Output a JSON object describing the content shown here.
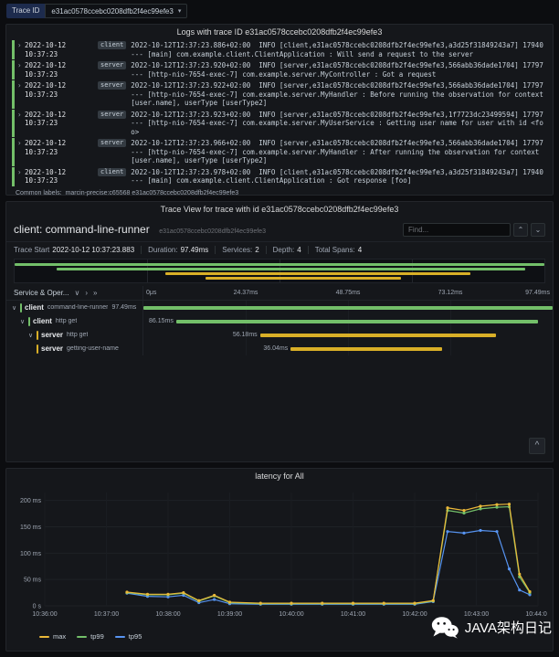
{
  "toolbar": {
    "trace_id_label": "Trace ID",
    "trace_id_value": "e31ac0578ccebc0208dfb2f4ec99efe3"
  },
  "glyphs": {
    "dropdown_caret": "▾",
    "log_expand": "›",
    "collapse_chevron": "∨",
    "expand_one": "›",
    "expand_all": "»",
    "find_prev": "⌃",
    "find_next": "⌄",
    "scroll_top": "^"
  },
  "logs_panel": {
    "title": "Logs with trace ID e31ac0578ccebc0208dfb2f4ec99efe3",
    "rows": [
      {
        "time": "2022-10-12 10:37:23",
        "service": "client",
        "message": "2022-10-12T12:37:23.886+02:00  INFO [client,e31ac0578ccebc0208dfb2f4ec99efe3,a3d25f31849243a7] 17940 --- [main] com.example.client.ClientApplication : Will send a request to the server"
      },
      {
        "time": "2022-10-12 10:37:23",
        "service": "server",
        "message": "2022-10-12T12:37:23.920+02:00  INFO [server,e31ac0578ccebc0208dfb2f4ec99efe3,566abb36dade1704] 17797 --- [http-nio-7654-exec-7] com.example.server.MyController : Got a request"
      },
      {
        "time": "2022-10-12 10:37:23",
        "service": "server",
        "message": "2022-10-12T12:37:23.922+02:00  INFO [server,e31ac0578ccebc0208dfb2f4ec99efe3,566abb36dade1704] 17797 --- [http-nio-7654-exec-7] com.example.server.MyHandler : Before running the observation for context [user.name], userType [userType2]"
      },
      {
        "time": "2022-10-12 10:37:23",
        "service": "server",
        "message": "2022-10-12T12:37:23.923+02:00  INFO [server,e31ac0578ccebc0208dfb2f4ec99efe3,1f7723dc23499594] 17797 --- [http-nio-7654-exec-7] com.example.server.MyUserService : Getting user name for user with id <foo>"
      },
      {
        "time": "2022-10-12 10:37:23",
        "service": "server",
        "message": "2022-10-12T12:37:23.966+02:00  INFO [server,e31ac0578ccebc0208dfb2f4ec99efe3,566abb36dade1704] 17797 --- [http-nio-7654-exec-7] com.example.server.MyHandler : After running the observation for context [user.name], userType [userType2]"
      },
      {
        "time": "2022-10-12 10:37:23",
        "service": "client",
        "message": "2022-10-12T12:37:23.978+02:00  INFO [client,e31ac0578ccebc0208dfb2f4ec99efe3,a3d25f31849243a7] 17940 --- [main] com.example.client.ClientApplication : Got response [foo]"
      }
    ],
    "common_labels_label": "Common labels:",
    "common_labels_value": "marcin-precise:c65568 e31ac0578ccebc0208dfb2f4ec99efe3"
  },
  "trace_panel": {
    "title": "Trace View for trace with id e31ac0578ccebc0208dfb2f4ec99efe3",
    "header": {
      "span_name": "client: command-line-runner",
      "trace_id": "e31ac0578ccebc0208dfb2f4ec99efe3",
      "find_placeholder": "Find..."
    },
    "meta": {
      "trace_start_label": "Trace Start",
      "trace_start": "2022-10-12 10:37:23.883",
      "duration_label": "Duration:",
      "duration": "97.49ms",
      "services_label": "Services:",
      "services": "2",
      "depth_label": "Depth:",
      "depth": "4",
      "total_spans_label": "Total Spans:",
      "total_spans": "4"
    },
    "columns_header": "Service & Oper...",
    "ticks": [
      "0μs",
      "24.37ms",
      "48.75ms",
      "73.12ms",
      "97.49ms"
    ],
    "spans": [
      {
        "service": "client",
        "operation": "command-line-runner",
        "duration": "97.49ms",
        "depth": 0,
        "start_pct": 0,
        "width_pct": 100,
        "color": "#73bf69",
        "has_children": true
      },
      {
        "service": "client",
        "operation": "http get",
        "duration": "86.15ms",
        "depth": 1,
        "start_pct": 8,
        "width_pct": 88.4,
        "color": "#73bf69",
        "has_children": true
      },
      {
        "service": "server",
        "operation": "http get",
        "duration": "56.18ms",
        "depth": 2,
        "start_pct": 28.5,
        "width_pct": 57.6,
        "color": "#d9af27",
        "has_children": true
      },
      {
        "service": "server",
        "operation": "getting-user-name",
        "duration": "36.04ms",
        "depth": 3,
        "start_pct": 36,
        "width_pct": 37,
        "color": "#d9af27",
        "has_children": false
      }
    ]
  },
  "latency_panel": {
    "title": "latency for All",
    "chart_data": {
      "type": "line",
      "title": "latency for All",
      "xlabel": "",
      "ylabel": "",
      "x_unit": "time (HH:MM:SS), seconds offset from 10:36:00",
      "xlim_seconds": [
        0,
        480
      ],
      "ylim_ms": [
        0,
        215
      ],
      "x_tick_seconds": [
        0,
        60,
        120,
        180,
        240,
        300,
        360,
        420,
        480
      ],
      "x_tick_labels": [
        "10:36:00",
        "10:37:00",
        "10:38:00",
        "10:39:00",
        "10:40:00",
        "10:41:00",
        "10:42:00",
        "10:43:00",
        "10:44:00"
      ],
      "y_tick_values": [
        0,
        50,
        100,
        150,
        200
      ],
      "y_tick_labels": [
        "0 s",
        "50 ms",
        "100 ms",
        "150 ms",
        "200 ms"
      ],
      "grid": true,
      "legend_position": "bottom-left",
      "series": [
        {
          "name": "max",
          "color": "#eab839",
          "points": [
            [
              80,
              26
            ],
            [
              100,
              22
            ],
            [
              120,
              22
            ],
            [
              135,
              25
            ],
            [
              150,
              10
            ],
            [
              165,
              20
            ],
            [
              180,
              7
            ],
            [
              210,
              5
            ],
            [
              240,
              5
            ],
            [
              270,
              5
            ],
            [
              300,
              5
            ],
            [
              330,
              5
            ],
            [
              360,
              5
            ],
            [
              378,
              10
            ],
            [
              392,
              186
            ],
            [
              408,
              181
            ],
            [
              424,
              189
            ],
            [
              440,
              192
            ],
            [
              452,
              193
            ],
            [
              462,
              60
            ],
            [
              472,
              27
            ]
          ]
        },
        {
          "name": "tp99",
          "color": "#73bf69",
          "points": [
            [
              80,
              25
            ],
            [
              100,
              21
            ],
            [
              120,
              21
            ],
            [
              135,
              24
            ],
            [
              150,
              9
            ],
            [
              165,
              19
            ],
            [
              180,
              6
            ],
            [
              210,
              4
            ],
            [
              240,
              4
            ],
            [
              270,
              4
            ],
            [
              300,
              4
            ],
            [
              330,
              4
            ],
            [
              360,
              4
            ],
            [
              378,
              9
            ],
            [
              392,
              181
            ],
            [
              408,
              176
            ],
            [
              424,
              184
            ],
            [
              440,
              187
            ],
            [
              452,
              188
            ],
            [
              462,
              55
            ],
            [
              472,
              25
            ]
          ]
        },
        {
          "name": "tp95",
          "color": "#5794f2",
          "points": [
            [
              80,
              24
            ],
            [
              100,
              18
            ],
            [
              120,
              17
            ],
            [
              135,
              20
            ],
            [
              150,
              6
            ],
            [
              165,
              12
            ],
            [
              180,
              4
            ],
            [
              210,
              3
            ],
            [
              240,
              3
            ],
            [
              270,
              3
            ],
            [
              300,
              3
            ],
            [
              330,
              3
            ],
            [
              360,
              3
            ],
            [
              378,
              8
            ],
            [
              392,
              141
            ],
            [
              408,
              138
            ],
            [
              424,
              143
            ],
            [
              440,
              141
            ],
            [
              452,
              70
            ],
            [
              462,
              30
            ],
            [
              472,
              21
            ]
          ]
        }
      ]
    }
  },
  "watermark": {
    "text": "JAVA架构日记"
  }
}
